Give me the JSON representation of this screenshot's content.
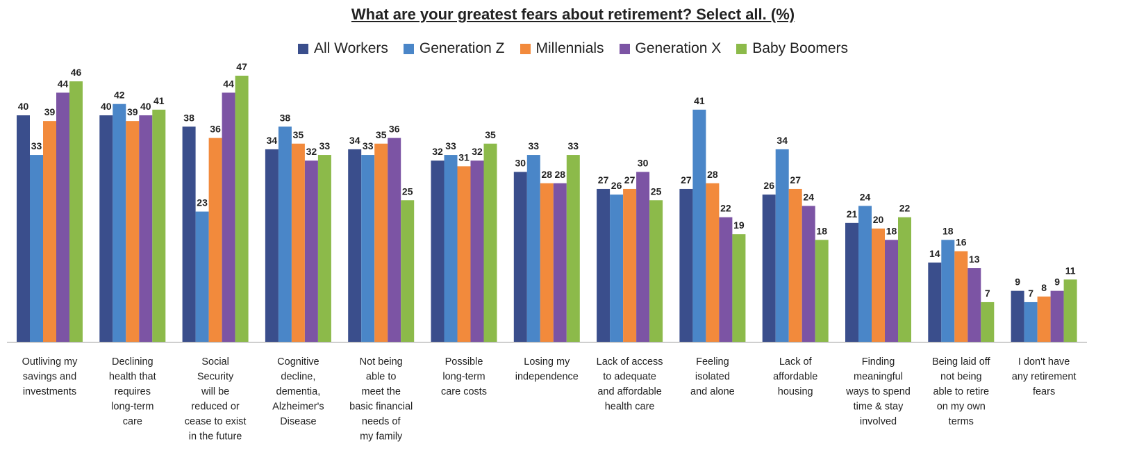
{
  "chart_data": {
    "type": "bar",
    "title": "What are your greatest fears about retirement? Select all. (%)",
    "legend_position": "top",
    "grid": false,
    "ylim": [
      0,
      50
    ],
    "categories": [
      [
        "Outliving my",
        "savings and",
        "investments"
      ],
      [
        "Declining",
        "health that",
        "requires",
        "long-term",
        "care"
      ],
      [
        "Social",
        "Security",
        "will be",
        "reduced or",
        "cease to exist",
        "in the future"
      ],
      [
        "Cognitive",
        "decline,",
        "dementia,",
        "Alzheimer's",
        "Disease"
      ],
      [
        "Not being",
        "able to",
        "meet the",
        "basic financial",
        "needs of",
        "my family"
      ],
      [
        "Possible",
        "long-term",
        "care costs"
      ],
      [
        "Losing my",
        "independence"
      ],
      [
        "Lack of access",
        "to adequate",
        "and affordable",
        "health care"
      ],
      [
        "Feeling",
        "isolated",
        "and alone"
      ],
      [
        "Lack of",
        "affordable",
        "housing"
      ],
      [
        "Finding",
        "meaningful",
        "ways to spend",
        "time & stay",
        "involved"
      ],
      [
        "Being laid off",
        "not being",
        "able to retire",
        "on my own",
        "terms"
      ],
      [
        "I don't have",
        "any retirement",
        "fears"
      ]
    ],
    "series": [
      {
        "name": "All Workers",
        "color": "#3a4e8c",
        "values": [
          40,
          40,
          38,
          34,
          34,
          32,
          30,
          27,
          27,
          26,
          21,
          14,
          9
        ]
      },
      {
        "name": "Generation Z",
        "color": "#4a86c8",
        "values": [
          33,
          42,
          23,
          38,
          33,
          33,
          33,
          26,
          41,
          34,
          24,
          18,
          7
        ]
      },
      {
        "name": "Millennials",
        "color": "#f28a3c",
        "values": [
          39,
          39,
          36,
          35,
          35,
          31,
          28,
          27,
          28,
          27,
          20,
          16,
          8
        ]
      },
      {
        "name": "Generation X",
        "color": "#7c54a4",
        "values": [
          44,
          40,
          44,
          32,
          36,
          32,
          28,
          30,
          22,
          24,
          18,
          13,
          9
        ]
      },
      {
        "name": "Baby Boomers",
        "color": "#8cba4a",
        "values": [
          46,
          41,
          47,
          33,
          25,
          35,
          33,
          25,
          19,
          18,
          22,
          7,
          11
        ]
      }
    ]
  }
}
